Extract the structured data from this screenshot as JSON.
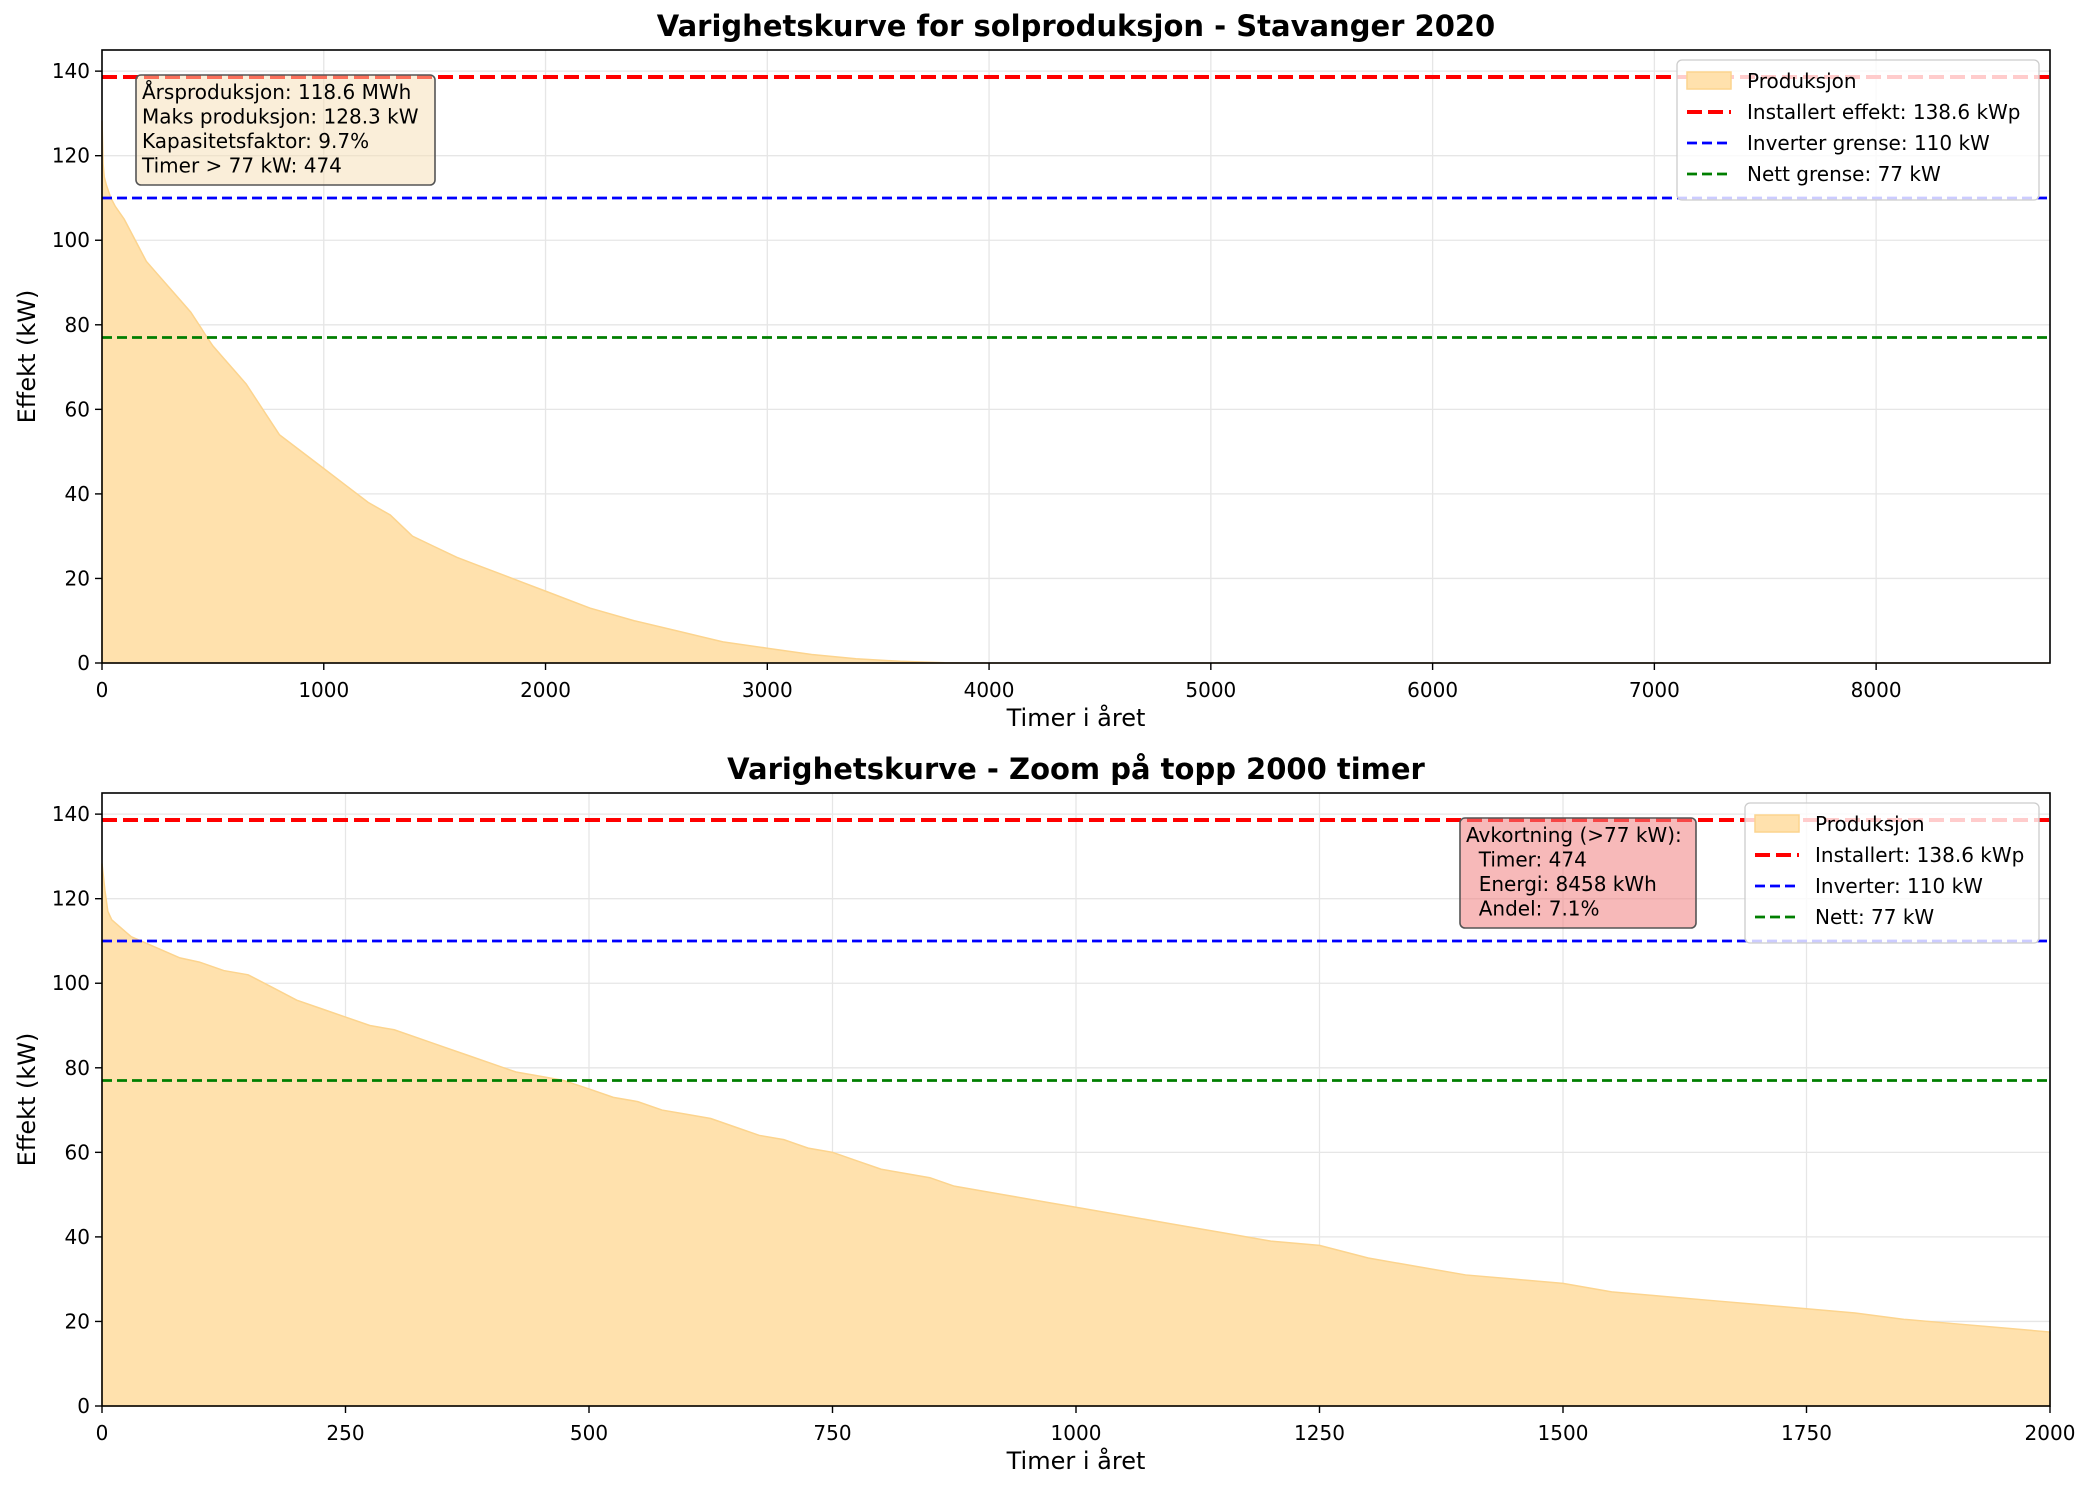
{
  "colors": {
    "area_fill": "#ffe1ad",
    "area_edge": "#fcd48e",
    "installed": "#ff0000",
    "inverter": "#0000ff",
    "grid_limit": "#007f00",
    "stats_box": "#f5deb3",
    "curtail_box": "#f08080",
    "gridline": "#e6e6e6"
  },
  "chart_data": [
    {
      "type": "area",
      "title": "Varighetskurve for solproduksjon - Stavanger 2020",
      "xlabel": "Timer i året",
      "ylabel": "Effekt (kW)",
      "xlim": [
        0,
        8784
      ],
      "ylim": [
        0,
        145
      ],
      "xticks": [
        0,
        1000,
        2000,
        3000,
        4000,
        5000,
        6000,
        7000,
        8000
      ],
      "yticks": [
        0,
        20,
        40,
        60,
        80,
        100,
        120,
        140
      ],
      "grid": true,
      "legend_position": "top-right",
      "legend": [
        {
          "label": "Produksjon",
          "kind": "patch"
        },
        {
          "label": "Installert effekt: 138.6 kWp",
          "kind": "line-dashed-thick",
          "color": "#ff0000"
        },
        {
          "label": "Inverter grense: 110 kW",
          "kind": "line-dashed",
          "color": "#0000ff"
        },
        {
          "label": "Nett grense: 77 kW",
          "kind": "line-dashed",
          "color": "#007f00"
        }
      ],
      "hlines": [
        {
          "y": 138.6,
          "color": "#ff0000",
          "style": "thick"
        },
        {
          "y": 110,
          "color": "#0000ff",
          "style": "thin"
        },
        {
          "y": 77,
          "color": "#007f00",
          "style": "thin"
        }
      ],
      "annotation": {
        "position": "top-left",
        "lines": [
          "Årsproduksjon: 118.6 MWh",
          "Maks produksjon: 128.3 kW",
          "Kapasitetsfaktor: 9.7%",
          "Timer > 77 kW: 474"
        ]
      },
      "x": [
        0,
        5,
        10,
        20,
        40,
        60,
        100,
        150,
        200,
        250,
        300,
        350,
        400,
        450,
        474,
        500,
        550,
        600,
        650,
        700,
        750,
        800,
        900,
        1000,
        1100,
        1200,
        1300,
        1400,
        1500,
        1600,
        1700,
        1800,
        1900,
        2000,
        2200,
        2400,
        2600,
        2800,
        3000,
        3200,
        3400,
        3600,
        3800,
        3900,
        8784
      ],
      "y": [
        128.3,
        118,
        115,
        113,
        110,
        108,
        105,
        100,
        95,
        92,
        89,
        86,
        83,
        79,
        77,
        75,
        72,
        69,
        66,
        62,
        58,
        54,
        50,
        46,
        42,
        38,
        35,
        30,
        27.5,
        25,
        23,
        21,
        19,
        17,
        13,
        10,
        7.5,
        5,
        3.5,
        2,
        1,
        0.4,
        0.05,
        0,
        0
      ]
    },
    {
      "type": "area",
      "title": "Varighetskurve - Zoom på topp 2000 timer",
      "xlabel": "Timer i året",
      "ylabel": "Effekt (kW)",
      "xlim": [
        0,
        2000
      ],
      "ylim": [
        0,
        145
      ],
      "xticks": [
        0,
        250,
        500,
        750,
        1000,
        1250,
        1500,
        1750,
        2000
      ],
      "yticks": [
        0,
        20,
        40,
        60,
        80,
        100,
        120,
        140
      ],
      "grid": true,
      "legend_position": "top-right",
      "legend": [
        {
          "label": "Produksjon",
          "kind": "patch"
        },
        {
          "label": "Installert: 138.6 kWp",
          "kind": "line-dashed-thick",
          "color": "#ff0000"
        },
        {
          "label": "Inverter: 110 kW",
          "kind": "line-dashed",
          "color": "#0000ff"
        },
        {
          "label": "Nett: 77 kW",
          "kind": "line-dashed",
          "color": "#007f00"
        }
      ],
      "hlines": [
        {
          "y": 138.6,
          "color": "#ff0000",
          "style": "thick"
        },
        {
          "y": 110,
          "color": "#0000ff",
          "style": "thin"
        },
        {
          "y": 77,
          "color": "#007f00",
          "style": "thin"
        }
      ],
      "annotation": {
        "position": "top-right",
        "lines": [
          "Avkortning (>77 kW):",
          "  Timer: 474",
          "  Energi: 8458 kWh",
          "  Andel: 7.1%"
        ]
      },
      "x": [
        0,
        3,
        6,
        10,
        15,
        20,
        30,
        40,
        60,
        80,
        100,
        125,
        150,
        175,
        200,
        225,
        250,
        275,
        300,
        325,
        350,
        375,
        400,
        425,
        450,
        474,
        500,
        525,
        550,
        575,
        600,
        625,
        650,
        675,
        700,
        725,
        750,
        775,
        800,
        825,
        850,
        875,
        900,
        925,
        950,
        975,
        1000,
        1050,
        1100,
        1150,
        1200,
        1250,
        1300,
        1350,
        1400,
        1450,
        1500,
        1550,
        1600,
        1650,
        1700,
        1750,
        1800,
        1850,
        1900,
        1950,
        2000
      ],
      "y": [
        128.3,
        122,
        117,
        115,
        114,
        113,
        111,
        110,
        108,
        106,
        105,
        103,
        102,
        99,
        96,
        94,
        92,
        90,
        89,
        87,
        85,
        83,
        81,
        79,
        78,
        77,
        75,
        73,
        72,
        70,
        69,
        68,
        66,
        64,
        63,
        61,
        60,
        58,
        56,
        55,
        54,
        52,
        51,
        50,
        49,
        48,
        47,
        45,
        43,
        41,
        39,
        38,
        35,
        33,
        31,
        30,
        29,
        27,
        26,
        25,
        24,
        23,
        22,
        20.5,
        19.5,
        18.5,
        17.5
      ]
    }
  ]
}
